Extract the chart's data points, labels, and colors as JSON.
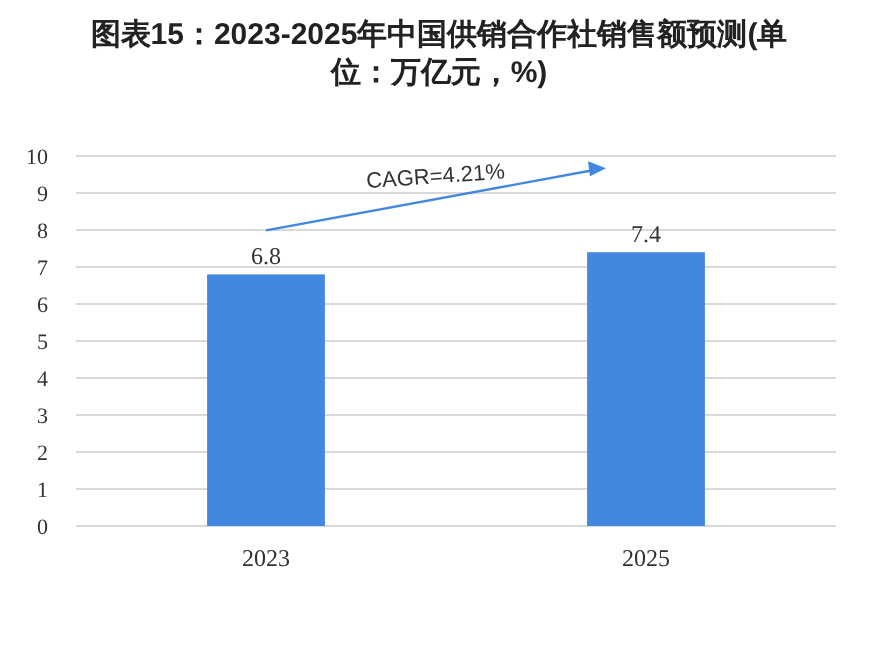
{
  "chart_data": {
    "type": "bar",
    "title": "图表15：2023-2025年中国供销合作社销售额预测(单位：万亿元，%)",
    "categories": [
      "2023",
      "2025"
    ],
    "values": [
      6.8,
      7.4
    ],
    "color": "#4287e0",
    "ylim": [
      0,
      10
    ],
    "yticks": [
      0,
      1,
      2,
      3,
      4,
      5,
      6,
      7,
      8,
      9,
      10
    ],
    "grid": "y",
    "data_labels": true,
    "annotations": [
      "CAGR=4.21%"
    ]
  }
}
